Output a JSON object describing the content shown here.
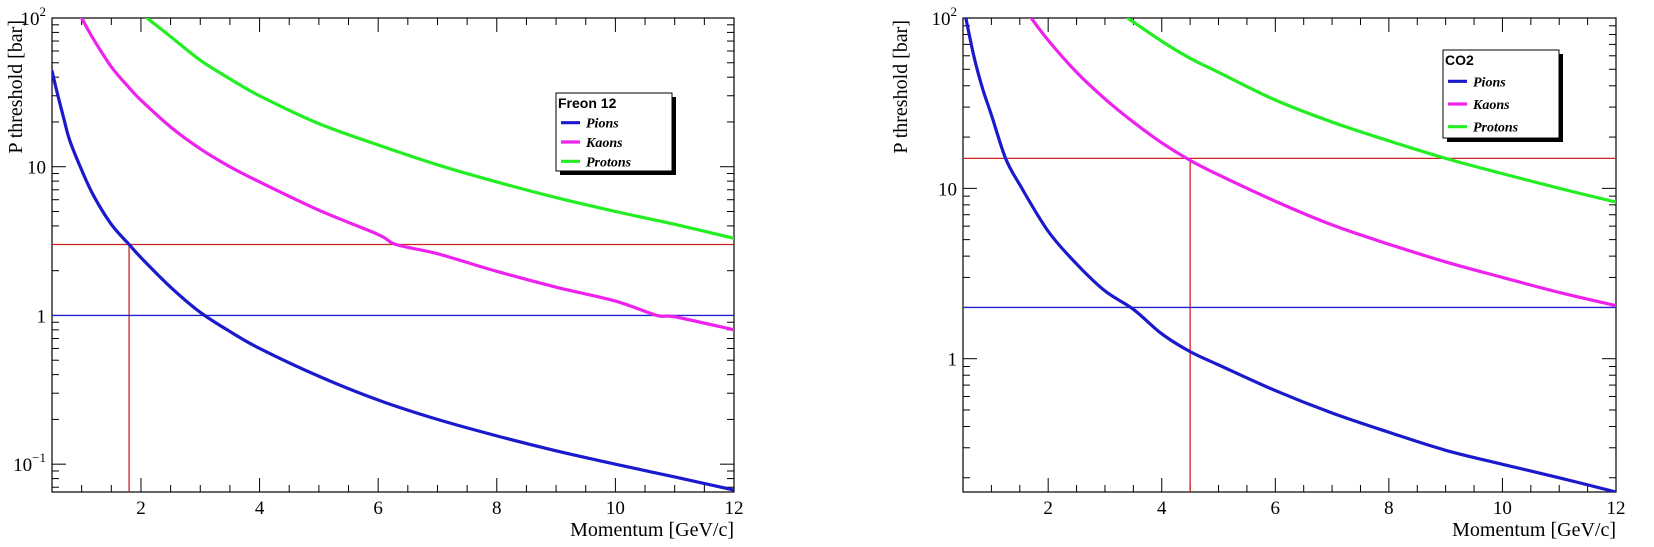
{
  "chart_data": [
    {
      "type": "line",
      "title": "",
      "xlabel": "Momentum [GeV/c]",
      "ylabel": "P threshold [bar]",
      "yscale": "log",
      "xlim": [
        0.5,
        12
      ],
      "ylim": [
        0.065,
        100
      ],
      "x_ticks": [
        2,
        4,
        6,
        8,
        10,
        12
      ],
      "x_tick_labels": [
        "2",
        "4",
        "6",
        "8",
        "10",
        "12"
      ],
      "y_ticks": [
        0.1,
        1,
        10,
        100
      ],
      "y_tick_labels": [
        {
          "base": "10",
          "exp": "−1"
        },
        {
          "base": "1",
          "exp": ""
        },
        {
          "base": "10",
          "exp": ""
        },
        {
          "base": "10",
          "exp": "2"
        }
      ],
      "legend": {
        "title": "Freon 12",
        "placement": "top-right"
      },
      "series": [
        {
          "name": "Pions",
          "color": "#1a1acc",
          "x": [
            0.5,
            0.6,
            0.7,
            0.8,
            1.0,
            1.2,
            1.5,
            1.8,
            2.0,
            2.5,
            3.0,
            3.5,
            4.0,
            5.0,
            6.0,
            7.0,
            8.0,
            9.0,
            10.0,
            11.0,
            12.0
          ],
          "y": [
            44,
            30,
            21,
            15,
            9.5,
            6.4,
            4.1,
            3.0,
            2.45,
            1.55,
            1.05,
            0.78,
            0.6,
            0.39,
            0.27,
            0.2,
            0.155,
            0.123,
            0.1,
            0.082,
            0.067
          ]
        },
        {
          "name": "Kaons",
          "color": "#ee22ee",
          "x": [
            1.0,
            1.2,
            1.5,
            1.8,
            2.0,
            2.5,
            3.0,
            3.5,
            4.0,
            5.0,
            6.0,
            6.3,
            7.0,
            8.0,
            9.0,
            10.0,
            10.7,
            11.0,
            12.0
          ],
          "y": [
            100,
            72,
            47,
            34,
            28,
            18.5,
            13.2,
            10,
            7.9,
            5.1,
            3.5,
            3.0,
            2.6,
            1.98,
            1.55,
            1.25,
            1.0,
            0.98,
            0.8
          ]
        },
        {
          "name": "Protons",
          "color": "#22ee22",
          "x": [
            2.1,
            2.5,
            3.0,
            3.5,
            4.0,
            5.0,
            6.0,
            7.0,
            8.0,
            9.0,
            10.0,
            11.0,
            12.0
          ],
          "y": [
            100,
            75,
            52,
            39,
            30,
            19.5,
            14,
            10.3,
            7.9,
            6.2,
            5.0,
            4.1,
            3.3
          ]
        }
      ],
      "reference_lines": [
        {
          "kind": "horizontal",
          "y": 3,
          "color": "#cc2222",
          "x_start": 0.5,
          "x_end": 12
        },
        {
          "kind": "vertical",
          "x": 1.8,
          "color": "#cc2222",
          "y_start": 0.065,
          "y_end": 3
        },
        {
          "kind": "horizontal",
          "y": 1,
          "color": "#2222cc",
          "x_start": 0.5,
          "x_end": 12
        }
      ]
    },
    {
      "type": "line",
      "title": "",
      "xlabel": "Momentum [GeV/c]",
      "ylabel": "P threshold [bar]",
      "yscale": "log",
      "xlim": [
        0.5,
        12
      ],
      "ylim": [
        0.165,
        100
      ],
      "x_ticks": [
        2,
        4,
        6,
        8,
        10,
        12
      ],
      "x_tick_labels": [
        "2",
        "4",
        "6",
        "8",
        "10",
        "12"
      ],
      "y_ticks": [
        1,
        10,
        100
      ],
      "y_tick_labels": [
        {
          "base": "1",
          "exp": ""
        },
        {
          "base": "10",
          "exp": ""
        },
        {
          "base": "10",
          "exp": "2"
        }
      ],
      "legend": {
        "title": "CO2",
        "placement": "top-right"
      },
      "series": [
        {
          "name": "Pions",
          "color": "#1a1acc",
          "x": [
            0.55,
            0.7,
            0.85,
            1.0,
            1.25,
            1.5,
            2.0,
            2.5,
            3.0,
            3.5,
            4.0,
            4.5,
            5.0,
            6.0,
            7.0,
            8.0,
            9.0,
            10.0,
            11.0,
            12.0
          ],
          "y": [
            100,
            58,
            38,
            27,
            15,
            10.5,
            5.6,
            3.6,
            2.5,
            1.95,
            1.4,
            1.1,
            0.92,
            0.65,
            0.48,
            0.37,
            0.29,
            0.24,
            0.2,
            0.165
          ]
        },
        {
          "name": "Kaons",
          "color": "#ee22ee",
          "x": [
            1.7,
            2.0,
            2.5,
            3.0,
            3.5,
            4.0,
            4.5,
            5.0,
            6.0,
            7.0,
            8.0,
            9.0,
            10.0,
            11.0,
            12.0
          ],
          "y": [
            100,
            74,
            48,
            33.5,
            24.5,
            18.5,
            14.6,
            12,
            8.4,
            6.1,
            4.7,
            3.7,
            3.0,
            2.45,
            2.05
          ]
        },
        {
          "name": "Protons",
          "color": "#22ee22",
          "x": [
            3.4,
            4.0,
            4.5,
            5.0,
            6.0,
            7.0,
            8.0,
            9.0,
            10.0,
            11.0,
            12.0
          ],
          "y": [
            100,
            73,
            58,
            48,
            33,
            24.5,
            19,
            15,
            12.2,
            10,
            8.3
          ]
        }
      ],
      "reference_lines": [
        {
          "kind": "horizontal",
          "y": 15,
          "color": "#cc2222",
          "x_start": 0.5,
          "x_end": 12
        },
        {
          "kind": "vertical",
          "x": 4.5,
          "color": "#cc2222",
          "y_start": 0.165,
          "y_end": 15
        },
        {
          "kind": "horizontal",
          "y": 2,
          "color": "#2222cc",
          "x_start": 0.5,
          "x_end": 12
        }
      ]
    }
  ]
}
